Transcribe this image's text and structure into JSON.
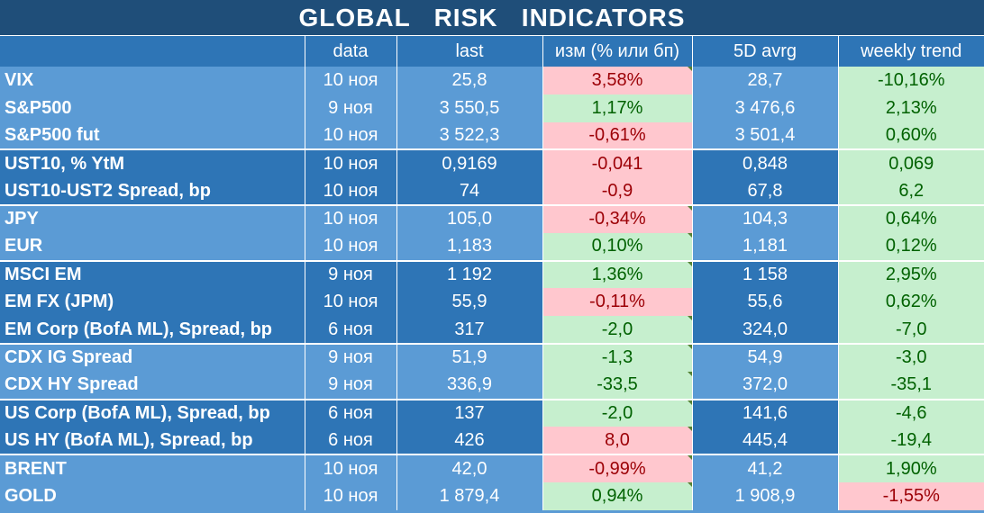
{
  "title": "GLOBAL   RISK   INDICATORS",
  "colors": {
    "header_dark": "#1f4e79",
    "header_mid": "#2e75b6",
    "body_light": "#5b9bd5",
    "positive_bg": "#c6efce",
    "positive_text": "#006100",
    "negative_bg": "#ffc7ce",
    "negative_text": "#9c0006"
  },
  "columns": [
    "",
    "data",
    "last",
    "изм (% или бп)",
    "5D avrg",
    "weekly trend"
  ],
  "rows": [
    {
      "name": "VIX",
      "date": "10 ноя",
      "last": "25,8",
      "change": "3,58%",
      "change_sign": "neg",
      "avg5d": "28,7",
      "weekly": "-10,16%",
      "weekly_sign": "pos"
    },
    {
      "name": "S&P500",
      "date": "9 ноя",
      "last": "3 550,5",
      "change": "1,17%",
      "change_sign": "pos",
      "avg5d": "3 476,6",
      "weekly": "2,13%",
      "weekly_sign": "pos"
    },
    {
      "name": "S&P500 fut",
      "date": "10 ноя",
      "last": "3 522,3",
      "change": "-0,61%",
      "change_sign": "neg",
      "avg5d": "3 501,4",
      "weekly": "0,60%",
      "weekly_sign": "pos"
    },
    {
      "name": "UST10, % YtM",
      "date": "10 ноя",
      "last": "0,9169",
      "change": "-0,041",
      "change_sign": "neg",
      "avg5d": "0,848",
      "weekly": "0,069",
      "weekly_sign": "pos"
    },
    {
      "name": "UST10-UST2 Spread, bp",
      "date": "10 ноя",
      "last": "74",
      "change": "-0,9",
      "change_sign": "neg",
      "avg5d": "67,8",
      "weekly": "6,2",
      "weekly_sign": "pos"
    },
    {
      "name": "JPY",
      "date": "10 ноя",
      "last": "105,0",
      "change": "-0,34%",
      "change_sign": "neg",
      "avg5d": "104,3",
      "weekly": "0,64%",
      "weekly_sign": "pos"
    },
    {
      "name": "EUR",
      "date": "10 ноя",
      "last": "1,183",
      "change": "0,10%",
      "change_sign": "pos",
      "avg5d": "1,181",
      "weekly": "0,12%",
      "weekly_sign": "pos"
    },
    {
      "name": "MSCI EM",
      "date": "9 ноя",
      "last": "1 192",
      "change": "1,36%",
      "change_sign": "pos",
      "avg5d": "1 158",
      "weekly": "2,95%",
      "weekly_sign": "pos"
    },
    {
      "name": "EM FX (JPM)",
      "date": "10 ноя",
      "last": "55,9",
      "change": "-0,11%",
      "change_sign": "neg",
      "avg5d": "55,6",
      "weekly": "0,62%",
      "weekly_sign": "pos"
    },
    {
      "name": "EM Corp (BofA ML), Spread, bp",
      "date": "6 ноя",
      "last": "317",
      "change": "-2,0",
      "change_sign": "pos",
      "avg5d": "324,0",
      "weekly": "-7,0",
      "weekly_sign": "pos"
    },
    {
      "name": "CDX IG Spread",
      "date": "9 ноя",
      "last": "51,9",
      "change": "-1,3",
      "change_sign": "pos",
      "avg5d": "54,9",
      "weekly": "-3,0",
      "weekly_sign": "pos"
    },
    {
      "name": "CDX HY Spread",
      "date": "9 ноя",
      "last": "336,9",
      "change": "-33,5",
      "change_sign": "pos",
      "avg5d": "372,0",
      "weekly": "-35,1",
      "weekly_sign": "pos"
    },
    {
      "name": "US Corp (BofA ML), Spread, bp",
      "date": "6 ноя",
      "last": "137",
      "change": "-2,0",
      "change_sign": "pos",
      "avg5d": "141,6",
      "weekly": "-4,6",
      "weekly_sign": "pos"
    },
    {
      "name": "US HY (BofA ML), Spread, bp",
      "date": "6 ноя",
      "last": "426",
      "change": "8,0",
      "change_sign": "neg",
      "avg5d": "445,4",
      "weekly": "-19,4",
      "weekly_sign": "pos"
    },
    {
      "name": "BRENT",
      "date": "10 ноя",
      "last": "42,0",
      "change": "-0,99%",
      "change_sign": "neg",
      "avg5d": "41,2",
      "weekly": "1,90%",
      "weekly_sign": "pos"
    },
    {
      "name": "GOLD",
      "date": "10 ноя",
      "last": "1 879,4",
      "change": "0,94%",
      "change_sign": "pos",
      "avg5d": "1 908,9",
      "weekly": "-1,55%",
      "weekly_sign": "neg"
    }
  ]
}
